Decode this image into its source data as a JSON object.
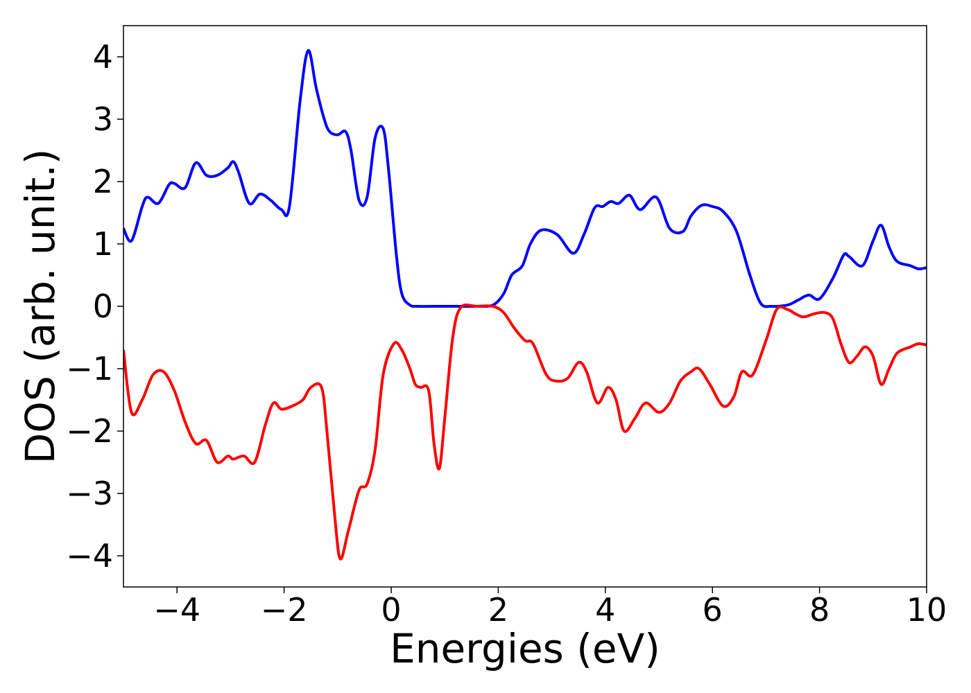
{
  "chart_data": {
    "type": "line",
    "title": "",
    "xlabel": "Energies (eV)",
    "ylabel": "DOS (arb. unit.)",
    "xlim": [
      -5,
      10
    ],
    "ylim": [
      -4.5,
      4.5
    ],
    "xticks": [
      -4,
      -2,
      0,
      2,
      4,
      6,
      8,
      10
    ],
    "yticks": [
      -4,
      -3,
      -2,
      -1,
      0,
      1,
      2,
      3,
      4
    ],
    "xtick_labels": [
      "−4",
      "−2",
      "0",
      "2",
      "4",
      "6",
      "8",
      "10"
    ],
    "ytick_labels": [
      "−4",
      "−3",
      "−2",
      "−1",
      "0",
      "1",
      "2",
      "3",
      "4"
    ],
    "grid": false,
    "legend": "none",
    "series": [
      {
        "color": "#0000ff",
        "x": [
          -5.0,
          -4.85,
          -4.65,
          -4.55,
          -4.35,
          -4.15,
          -4.05,
          -3.85,
          -3.65,
          -3.45,
          -3.25,
          -3.05,
          -2.95,
          -2.85,
          -2.65,
          -2.45,
          -2.25,
          -2.05,
          -1.9,
          -1.7,
          -1.55,
          -1.4,
          -1.25,
          -1.15,
          -1.0,
          -0.85,
          -0.75,
          -0.6,
          -0.45,
          -0.3,
          -0.15,
          -0.05,
          0.1,
          0.2,
          0.35,
          0.5,
          0.8,
          1.2,
          1.6,
          1.9,
          2.1,
          2.25,
          2.45,
          2.6,
          2.8,
          3.1,
          3.4,
          3.6,
          3.8,
          3.95,
          4.1,
          4.25,
          4.45,
          4.65,
          4.95,
          5.2,
          5.45,
          5.6,
          5.8,
          6.0,
          6.2,
          6.45,
          6.7,
          6.9,
          7.1,
          7.4,
          7.6,
          7.8,
          8.0,
          8.25,
          8.45,
          8.55,
          8.8,
          9.0,
          9.15,
          9.3,
          9.45,
          9.7,
          9.85,
          10.0
        ],
        "y": [
          1.25,
          1.05,
          1.6,
          1.75,
          1.65,
          1.95,
          1.97,
          1.9,
          2.3,
          2.1,
          2.1,
          2.22,
          2.32,
          2.15,
          1.65,
          1.8,
          1.7,
          1.55,
          1.6,
          3.3,
          4.1,
          3.5,
          3.0,
          2.8,
          2.75,
          2.8,
          2.5,
          1.7,
          1.75,
          2.7,
          2.85,
          2.2,
          0.8,
          0.2,
          0.02,
          0.0,
          0.0,
          0.0,
          0.0,
          0.02,
          0.2,
          0.5,
          0.65,
          1.0,
          1.22,
          1.15,
          0.85,
          1.15,
          1.58,
          1.6,
          1.68,
          1.65,
          1.78,
          1.55,
          1.75,
          1.25,
          1.2,
          1.45,
          1.62,
          1.6,
          1.52,
          1.2,
          0.5,
          0.05,
          0.0,
          0.02,
          0.1,
          0.18,
          0.12,
          0.45,
          0.82,
          0.8,
          0.65,
          1.05,
          1.3,
          0.95,
          0.72,
          0.65,
          0.6,
          0.62
        ]
      },
      {
        "color": "#ff0000",
        "x": [
          -5.0,
          -4.85,
          -4.65,
          -4.45,
          -4.25,
          -4.05,
          -3.85,
          -3.65,
          -3.45,
          -3.25,
          -3.05,
          -2.95,
          -2.75,
          -2.55,
          -2.35,
          -2.2,
          -2.05,
          -1.85,
          -1.65,
          -1.5,
          -1.3,
          -1.2,
          -1.05,
          -0.95,
          -0.8,
          -0.6,
          -0.45,
          -0.3,
          -0.15,
          0.05,
          0.2,
          0.35,
          0.45,
          0.55,
          0.7,
          0.8,
          0.9,
          1.0,
          1.15,
          1.3,
          1.6,
          1.9,
          2.1,
          2.3,
          2.5,
          2.65,
          2.9,
          3.1,
          3.3,
          3.5,
          3.65,
          3.85,
          4.05,
          4.2,
          4.35,
          4.55,
          4.75,
          5.0,
          5.2,
          5.4,
          5.6,
          5.75,
          5.95,
          6.2,
          6.4,
          6.55,
          6.75,
          7.0,
          7.2,
          7.4,
          7.55,
          7.7,
          7.9,
          8.1,
          8.25,
          8.4,
          8.55,
          8.7,
          8.85,
          9.0,
          9.15,
          9.3,
          9.45,
          9.7,
          9.85,
          10.0
        ],
        "y": [
          -0.7,
          -1.7,
          -1.5,
          -1.1,
          -1.05,
          -1.35,
          -1.85,
          -2.2,
          -2.15,
          -2.5,
          -2.4,
          -2.45,
          -2.4,
          -2.5,
          -1.9,
          -1.55,
          -1.65,
          -1.6,
          -1.5,
          -1.3,
          -1.3,
          -2.0,
          -3.4,
          -4.05,
          -3.6,
          -2.95,
          -2.85,
          -2.3,
          -1.1,
          -0.6,
          -0.7,
          -1.0,
          -1.25,
          -1.3,
          -1.35,
          -2.2,
          -2.6,
          -1.8,
          -0.5,
          -0.02,
          0.0,
          0.0,
          -0.1,
          -0.35,
          -0.55,
          -0.6,
          -1.1,
          -1.2,
          -1.15,
          -0.9,
          -1.05,
          -1.55,
          -1.3,
          -1.5,
          -2.0,
          -1.8,
          -1.55,
          -1.7,
          -1.55,
          -1.2,
          -1.05,
          -1.0,
          -1.25,
          -1.6,
          -1.45,
          -1.05,
          -1.1,
          -0.55,
          -0.05,
          -0.05,
          -0.12,
          -0.17,
          -0.12,
          -0.1,
          -0.2,
          -0.6,
          -0.9,
          -0.8,
          -0.65,
          -0.8,
          -1.25,
          -1.0,
          -0.75,
          -0.65,
          -0.6,
          -0.62
        ]
      }
    ]
  }
}
